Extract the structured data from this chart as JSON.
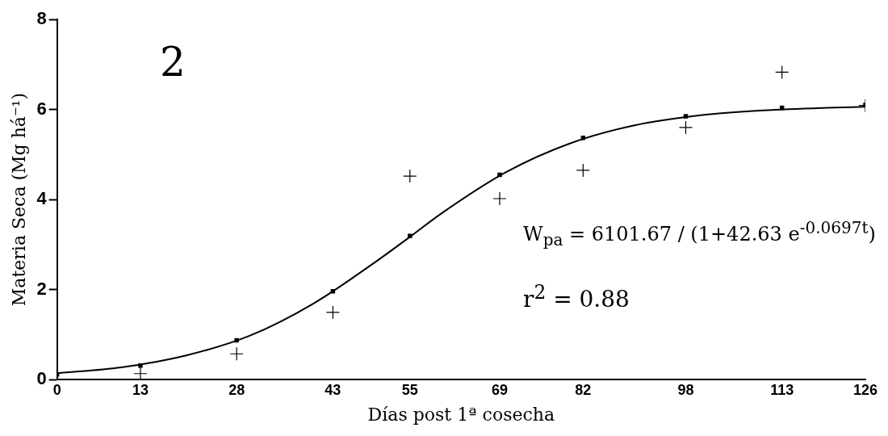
{
  "chart_data": {
    "type": "scatter",
    "xlabel": "Días post 1ª cosecha",
    "ylabel": "Materia Seca (Mg há⁻¹)",
    "xlim": [
      0,
      126
    ],
    "xticks": [
      0,
      13,
      28,
      43,
      55,
      69,
      82,
      98,
      113,
      126
    ],
    "ylim": [
      0,
      8
    ],
    "yticks": [
      0,
      2,
      4,
      6,
      8
    ],
    "grid": false,
    "legend": false,
    "series": [
      {
        "type": "scatter",
        "marker": "cross",
        "color": "#000000",
        "x": [
          13,
          28,
          43,
          55,
          69,
          82,
          98,
          113,
          126
        ],
        "values": [
          0.13,
          0.57,
          1.49,
          4.52,
          4.02,
          4.65,
          5.6,
          6.83,
          6.09
        ]
      },
      {
        "type": "scatter",
        "marker": "square",
        "color": "#000000",
        "x": [
          0,
          13,
          28,
          43,
          55,
          69,
          82,
          98,
          113,
          126
        ],
        "values": [
          0.11,
          0.31,
          0.87,
          1.96,
          3.19,
          4.55,
          5.37,
          5.85,
          6.04,
          6.1
        ]
      },
      {
        "type": "line",
        "marker": "none",
        "color": "#000000",
        "x": [
          0,
          10,
          20,
          30,
          40,
          50,
          55,
          60,
          70,
          80,
          90,
          100,
          110,
          120,
          126
        ],
        "values": [
          0.14,
          0.27,
          0.53,
          0.97,
          1.69,
          2.65,
          3.17,
          3.7,
          4.61,
          5.25,
          5.65,
          5.87,
          5.98,
          6.04,
          6.06
        ]
      }
    ],
    "annotations": [
      "2",
      "W$_{pa}$ = 6101.67 / (1+42.63 e$^{-0.0697t}$)",
      "r$^{2}$ = 0.88"
    ]
  }
}
